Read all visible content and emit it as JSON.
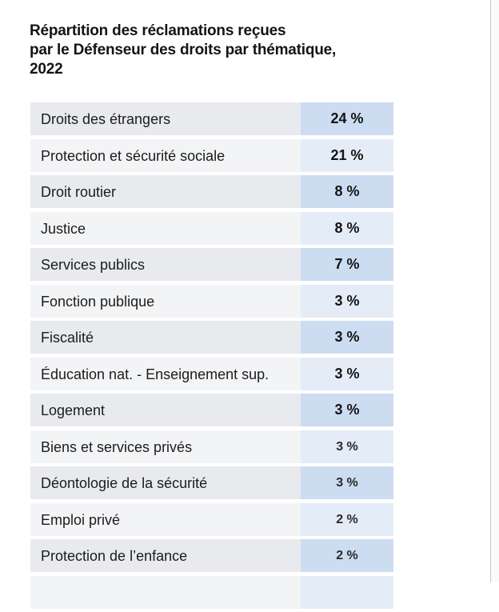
{
  "title": {
    "line1": "Répartition des réclamations reçues",
    "line2": "par le Défenseur des droits par thématique,",
    "line3": "2022"
  },
  "rows": [
    {
      "label": "Droits des étrangers",
      "value": "24 %"
    },
    {
      "label": "Protection et sécurité sociale",
      "value": "21 %"
    },
    {
      "label": "Droit routier",
      "value": "8 %"
    },
    {
      "label": "Justice",
      "value": "8 %"
    },
    {
      "label": "Services publics",
      "value": "7 %"
    },
    {
      "label": "Fonction publique",
      "value": "3 %"
    },
    {
      "label": "Fiscalité",
      "value": "3 %"
    },
    {
      "label": "Éducation nat. - Enseignement sup.",
      "value": "3 %"
    },
    {
      "label": "Logement",
      "value": "3 %"
    },
    {
      "label": "Biens et services privés",
      "value": "3 %"
    },
    {
      "label": "Déontologie de la sécurité",
      "value": "3 %"
    },
    {
      "label": "Emploi privé",
      "value": "2 %"
    },
    {
      "label": "Protection de l’enfance",
      "value": "2 %"
    }
  ],
  "colors": {
    "label_row_dark": "#e8eaee",
    "label_row_light": "#f3f4f6",
    "value_cell_dark": "#ccdcf1",
    "value_cell_light": "#e4ecf8"
  }
}
